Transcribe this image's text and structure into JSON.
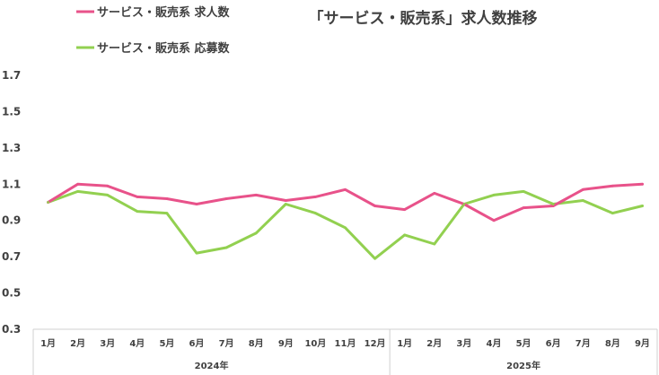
{
  "chart_data": {
    "type": "line",
    "title": "「サービス・販売系」求人数推移",
    "ylim": [
      0.3,
      1.7
    ],
    "yticks": [
      "1.7",
      "1.5",
      "1.3",
      "1.1",
      "0.9",
      "0.7",
      "0.5",
      "0.3"
    ],
    "categories": [
      "1月",
      "2月",
      "3月",
      "4月",
      "5月",
      "6月",
      "7月",
      "8月",
      "9月",
      "10月",
      "11月",
      "12月",
      "1月",
      "2月",
      "3月",
      "4月",
      "5月",
      "6月",
      "7月",
      "8月",
      "9月"
    ],
    "year_groups": [
      {
        "label": "2024年",
        "count": 12
      },
      {
        "label": "2025年",
        "count": 9
      }
    ],
    "grid": false,
    "legend_position": "top-left",
    "series": [
      {
        "name": "サービス・販売系 求人数",
        "color": "#e8528a",
        "values": [
          1.0,
          1.1,
          1.09,
          1.03,
          1.02,
          0.99,
          1.02,
          1.04,
          1.01,
          1.03,
          1.07,
          0.98,
          0.96,
          1.05,
          0.99,
          0.9,
          0.97,
          0.98,
          1.07,
          1.09,
          1.1
        ]
      },
      {
        "name": "サービス・販売系 応募数",
        "color": "#92d050",
        "values": [
          1.0,
          1.06,
          1.04,
          0.95,
          0.94,
          0.72,
          0.75,
          0.83,
          0.99,
          0.94,
          0.86,
          0.69,
          0.82,
          0.77,
          0.99,
          1.04,
          1.06,
          0.99,
          1.01,
          0.94,
          0.98
        ]
      }
    ]
  }
}
